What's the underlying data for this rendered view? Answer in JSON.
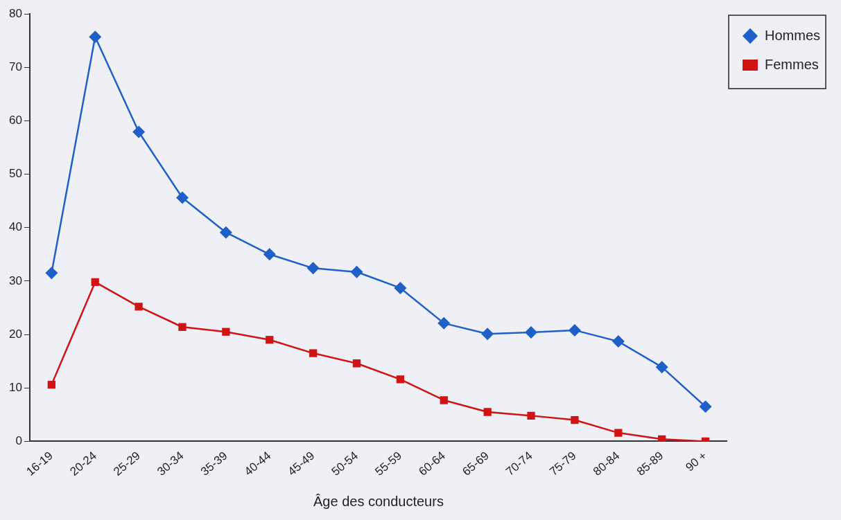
{
  "chart_data": {
    "type": "line",
    "xlabel": "Âge des conducteurs",
    "categories": [
      "16-19",
      "20-24",
      "25-29",
      "30-34",
      "35-39",
      "40-44",
      "45-49",
      "50-54",
      "55-59",
      "60-64",
      "65-69",
      "70-74",
      "75-79",
      "80-84",
      "85-89",
      "90 +"
    ],
    "series": [
      {
        "name": "Hommes",
        "color": "#1f5fc8",
        "marker": "diamond",
        "values": [
          31.5,
          75.7,
          57.9,
          45.6,
          39.1,
          35,
          32.4,
          31.7,
          28.7,
          22.1,
          20.1,
          20.4,
          20.8,
          18.7,
          13.9,
          6.5
        ]
      },
      {
        "name": "Femmes",
        "color": "#d01414",
        "marker": "square",
        "values": [
          10.6,
          29.8,
          25.2,
          21.4,
          20.5,
          19,
          16.5,
          14.6,
          11.6,
          7.7,
          5.5,
          4.8,
          4,
          1.6,
          0.4,
          0
        ]
      }
    ],
    "ylim": [
      0,
      80
    ],
    "yticks": [
      0,
      10,
      20,
      30,
      40,
      50,
      60,
      70,
      80
    ],
    "grid": false,
    "legend": "top right",
    "line_style": "solid"
  }
}
